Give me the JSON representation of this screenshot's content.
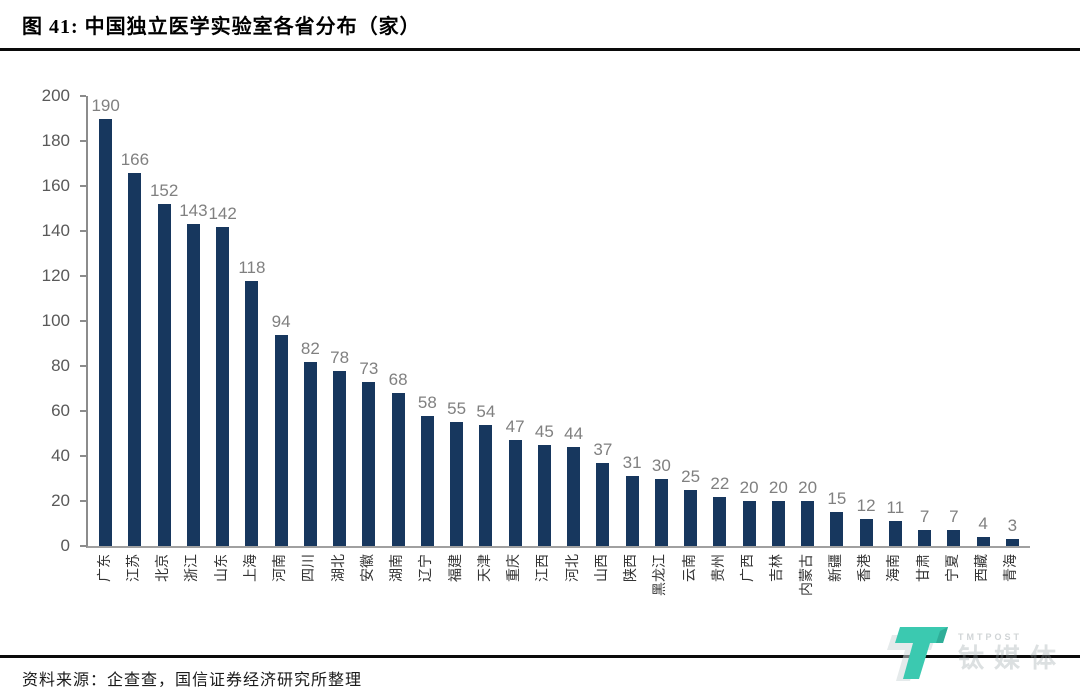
{
  "figure": {
    "title": "图 41:  中国独立医学实验室各省分布（家）",
    "source": "资料来源：企查查，国信证券经济研究所整理"
  },
  "chart_data": {
    "type": "bar",
    "title": "中国独立医学实验室各省分布（家）",
    "categories": [
      "广东",
      "江苏",
      "北京",
      "浙江",
      "山东",
      "上海",
      "河南",
      "四川",
      "湖北",
      "安徽",
      "湖南",
      "辽宁",
      "福建",
      "天津",
      "重庆",
      "江西",
      "河北",
      "山西",
      "陕西",
      "黑龙江",
      "云南",
      "贵州",
      "广西",
      "吉林",
      "内蒙古",
      "新疆",
      "香港",
      "海南",
      "甘肃",
      "宁夏",
      "西藏",
      "青海"
    ],
    "values": [
      190,
      166,
      152,
      143,
      142,
      118,
      94,
      82,
      78,
      73,
      68,
      58,
      55,
      54,
      47,
      45,
      44,
      37,
      31,
      30,
      25,
      22,
      20,
      20,
      20,
      15,
      12,
      11,
      7,
      7,
      4,
      3
    ],
    "xlabel": "",
    "ylabel": "",
    "ylim": [
      0,
      200
    ],
    "yticks": [
      0,
      20,
      40,
      60,
      80,
      100,
      120,
      140,
      160,
      180,
      200
    ],
    "grid": false,
    "legend": "none",
    "data_labels": true,
    "bar_color": "#17375E",
    "value_label_color": "#808080",
    "axis_color": "#8c8c8c"
  },
  "watermark": {
    "logo": "tmtpost-t-logo",
    "text_top": "TMTPOST",
    "text_bottom": "钛媒体",
    "teal": "#3BC9B0"
  }
}
